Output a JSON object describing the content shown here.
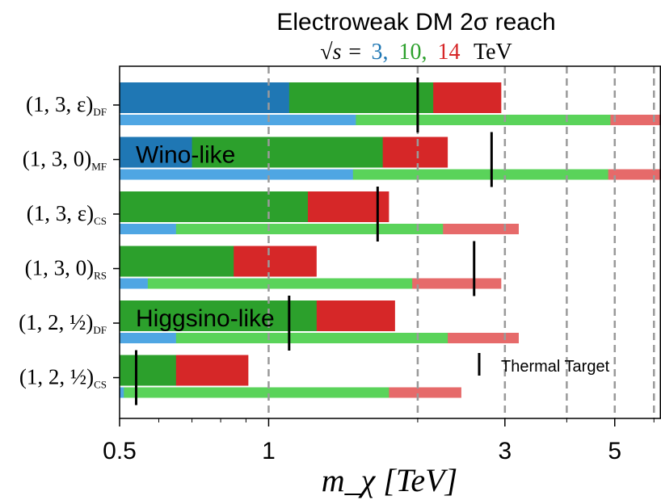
{
  "chart_data": {
    "type": "bar",
    "orientation": "horizontal",
    "title": "Electroweak DM 2σ reach",
    "subtitle": {
      "prefix": "√s =",
      "energies": [
        {
          "label": "3,",
          "color": "#1f77b4"
        },
        {
          "label": "10,",
          "color": "#2ca02c"
        },
        {
          "label": "14",
          "color": "#d62728"
        }
      ],
      "unit": "TeV"
    },
    "xlabel": "m_χ [TeV]",
    "xscale": "log",
    "xlim": [
      0.5,
      6.2
    ],
    "xticks": [
      {
        "value": 0.5,
        "label": "0.5"
      },
      {
        "value": 1,
        "label": "1"
      },
      {
        "value": 3,
        "label": "3"
      },
      {
        "value": 5,
        "label": "5"
      }
    ],
    "dashed_gridlines": [
      1,
      2,
      3,
      4,
      5,
      6
    ],
    "categories": [
      {
        "label": "(1, 3, ε)",
        "sub": "DF"
      },
      {
        "label": "(1, 3, 0)",
        "sub": "MF"
      },
      {
        "label": "(1, 3, ε)",
        "sub": "CS"
      },
      {
        "label": "(1, 3, 0)",
        "sub": "RS"
      },
      {
        "label": "(1, 2, ½)",
        "sub": "DF"
      },
      {
        "label": "(1, 2, ½)",
        "sub": "CS"
      }
    ],
    "series": [
      {
        "group": "main",
        "color": "#1f77b4",
        "values": [
          1.1,
          0.7,
          0.5,
          0.5,
          0.5,
          0.5
        ]
      },
      {
        "group": "main",
        "color": "#2ca02c",
        "values": [
          2.15,
          1.7,
          1.2,
          0.85,
          1.25,
          0.65
        ]
      },
      {
        "group": "main",
        "color": "#d62728",
        "values": [
          2.95,
          2.3,
          1.75,
          1.25,
          1.8,
          0.91
        ]
      },
      {
        "group": "thin",
        "color": "#4fa6e3",
        "values": [
          1.5,
          1.48,
          0.65,
          0.57,
          0.65,
          0.51
        ]
      },
      {
        "group": "thin",
        "color": "#5ad35a",
        "values": [
          4.9,
          4.85,
          2.25,
          1.95,
          2.3,
          1.75
        ]
      },
      {
        "group": "thin",
        "color": "#e66a6a",
        "values": [
          6.2,
          6.2,
          3.2,
          2.95,
          3.2,
          2.45
        ]
      }
    ],
    "thermal_target": {
      "label": "Thermal Target",
      "values": [
        2.0,
        2.82,
        1.66,
        2.6,
        1.1,
        0.54
      ]
    },
    "annotations": [
      {
        "text": "Wino-like",
        "row": 1
      },
      {
        "text": "Higgsino-like",
        "row": 4
      }
    ]
  }
}
